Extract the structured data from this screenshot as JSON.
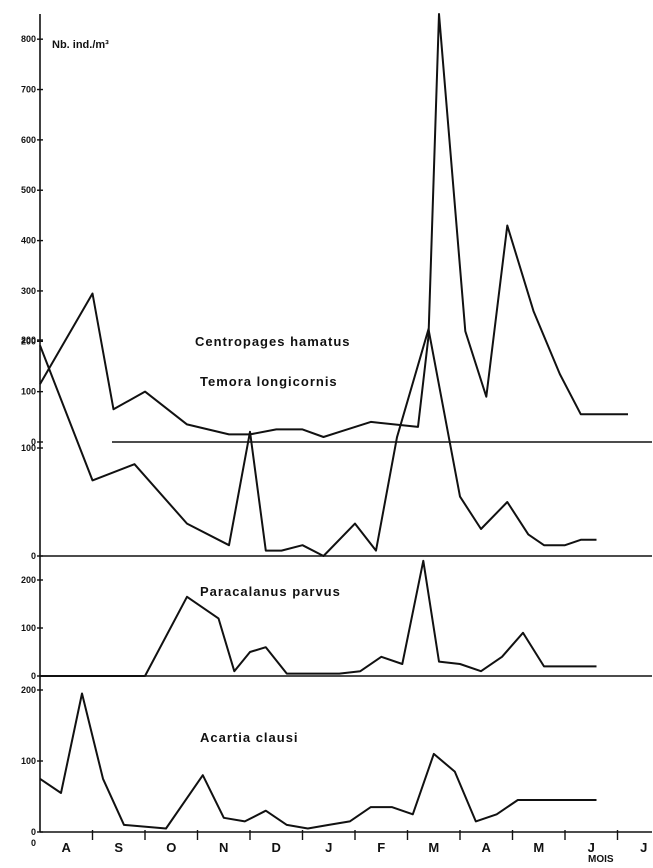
{
  "chart_data": {
    "type": "line",
    "unit_label": "Nb. ind./m³",
    "x_axis_label": "MOIS",
    "months": [
      "A",
      "S",
      "O",
      "N",
      "D",
      "J",
      "F",
      "M",
      "A",
      "M",
      "J",
      "J"
    ],
    "panels": [
      {
        "name": "Centropages hamatus",
        "ylim": [
          0,
          850
        ],
        "yticks": [
          0,
          100,
          200,
          300,
          400,
          500,
          600,
          700,
          800
        ],
        "x": [
          0,
          1.0,
          1.4,
          2.0,
          2.8,
          3.6,
          4.0,
          4.5,
          5.0,
          5.4,
          5.7,
          6.3,
          7.2,
          7.4,
          7.6,
          8.1,
          8.5,
          8.9,
          9.4,
          9.9,
          10.3,
          10.8,
          11.2
        ],
        "values": [
          115,
          295,
          65,
          100,
          35,
          15,
          15,
          25,
          25,
          10,
          20,
          40,
          30,
          210,
          850,
          220,
          90,
          430,
          260,
          135,
          55,
          55,
          55
        ]
      },
      {
        "name": "Temora longicornis",
        "ylim": [
          0,
          200
        ],
        "yticks": [
          0,
          100,
          200
        ],
        "x": [
          0,
          1.0,
          1.8,
          2.8,
          3.6,
          4.0,
          4.3,
          4.6,
          5.0,
          5.4,
          6.0,
          6.4,
          6.8,
          7.4,
          8.0,
          8.4,
          8.9,
          9.3,
          9.6,
          10.0,
          10.3,
          10.6
        ],
        "values": [
          195,
          70,
          85,
          30,
          10,
          115,
          5,
          5,
          10,
          0,
          30,
          5,
          110,
          210,
          55,
          25,
          50,
          20,
          10,
          10,
          15,
          15
        ]
      },
      {
        "name": "Paracalanus parvus",
        "ylim": [
          0,
          250
        ],
        "yticks": [
          0,
          100,
          200
        ],
        "x": [
          0,
          2.0,
          2.8,
          3.4,
          3.7,
          4.0,
          4.3,
          4.7,
          5.3,
          5.7,
          6.1,
          6.5,
          6.9,
          7.3,
          7.6,
          8.0,
          8.4,
          8.8,
          9.2,
          9.6,
          10.0,
          10.3,
          10.6
        ],
        "values": [
          0,
          0,
          165,
          120,
          10,
          50,
          60,
          5,
          5,
          5,
          10,
          40,
          25,
          240,
          30,
          25,
          10,
          40,
          90,
          20,
          20,
          20,
          20
        ]
      },
      {
        "name": "Acartia clausi",
        "ylim": [
          0,
          200
        ],
        "yticks": [
          0,
          100,
          200
        ],
        "x": [
          0,
          0.4,
          0.8,
          1.2,
          1.6,
          2.4,
          3.1,
          3.5,
          3.9,
          4.3,
          4.7,
          5.1,
          5.5,
          5.9,
          6.3,
          6.7,
          7.1,
          7.5,
          7.9,
          8.3,
          8.7,
          9.1,
          9.5,
          9.9,
          10.3,
          10.6
        ],
        "values": [
          75,
          55,
          195,
          75,
          10,
          5,
          80,
          20,
          15,
          30,
          10,
          5,
          10,
          15,
          35,
          35,
          25,
          110,
          85,
          15,
          25,
          45,
          45,
          45,
          45,
          45
        ]
      }
    ]
  }
}
